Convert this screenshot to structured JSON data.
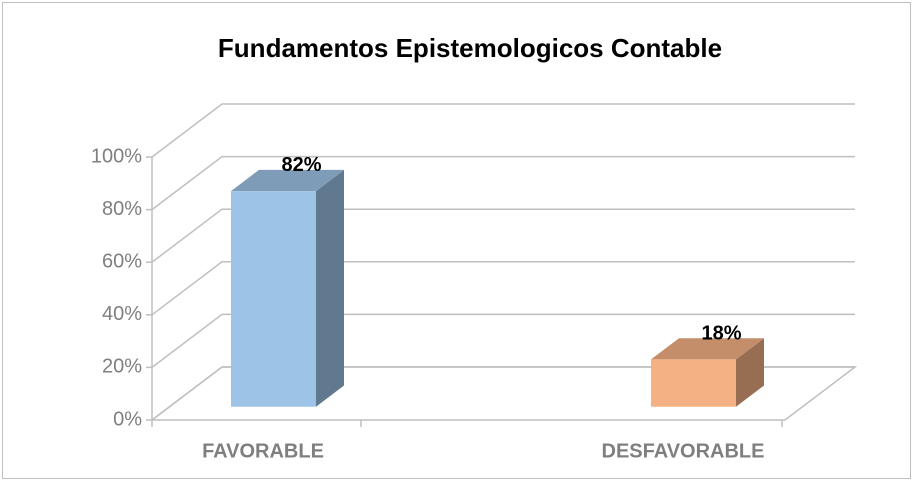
{
  "chart_data": {
    "type": "bar3d",
    "title": "Fundamentos Epistemologicos Contable",
    "categories": [
      "FAVORABLE",
      "DESFAVORABLE"
    ],
    "values": [
      82,
      18
    ],
    "value_labels": [
      "82%",
      "18%"
    ],
    "colors": [
      "#9dc3e6",
      "#f4b183"
    ],
    "ylim": [
      0,
      100
    ],
    "yticks": [
      {
        "value": 0,
        "label": "0%"
      },
      {
        "value": 20,
        "label": "20%"
      },
      {
        "value": 40,
        "label": "40%"
      },
      {
        "value": 60,
        "label": "60%"
      },
      {
        "value": 80,
        "label": "80%"
      },
      {
        "value": 100,
        "label": "100%"
      }
    ],
    "grid": true
  }
}
